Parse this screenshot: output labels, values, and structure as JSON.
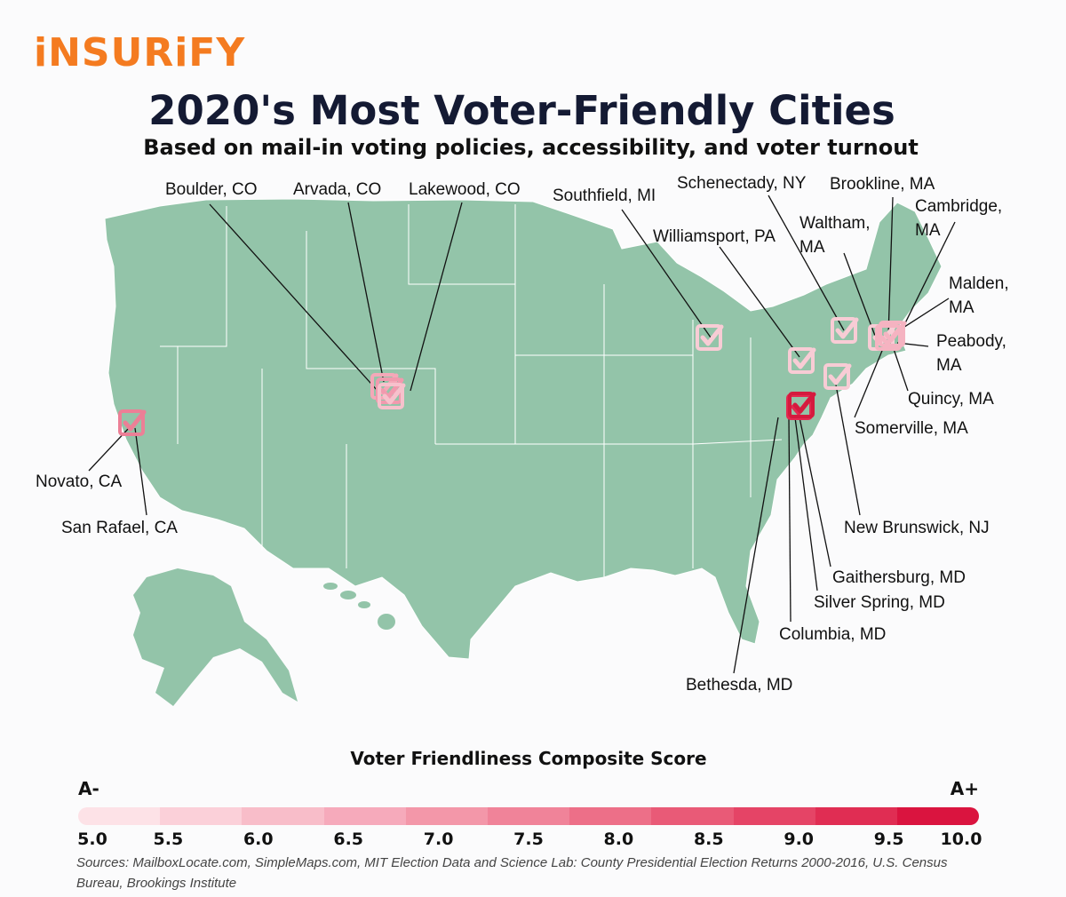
{
  "brand": {
    "logo_text": "iNSURiFY",
    "brand_color": "#f47b20"
  },
  "title": "2020's Most Voter-Friendly Cities",
  "subtitle": "Based on mail-in voting policies, accessibility, and voter turnout",
  "map": {
    "land_color": "#93c4a9",
    "marker_icon": "checkbox-check-icon",
    "cities": [
      {
        "label": "Boulder, CO",
        "score_color": "#f4a8b8"
      },
      {
        "label": "Arvada, CO",
        "score_color": "#f19aae"
      },
      {
        "label": "Lakewood, CO",
        "score_color": "#f7c1cc"
      },
      {
        "label": "Southfield, MI",
        "score_color": "#f8ccd5"
      },
      {
        "label": "Schenectady, NY",
        "score_color": "#f8ccd5"
      },
      {
        "label": "Brookline, MA",
        "score_color": "#f5b3c1"
      },
      {
        "label": "Cambridge, MA",
        "score_color": "#f5b3c1"
      },
      {
        "label": "Waltham, MA",
        "score_color": "#f8ccd5"
      },
      {
        "label": "Williamsport, PA",
        "score_color": "#f8ccd5"
      },
      {
        "label": "Malden, MA",
        "score_color": "#f8ccd5"
      },
      {
        "label": "Peabody, MA",
        "score_color": "#f8ccd5"
      },
      {
        "label": "Quincy, MA",
        "score_color": "#f8ccd5"
      },
      {
        "label": "Somerville, MA",
        "score_color": "#f8ccd5"
      },
      {
        "label": "Novato, CA",
        "score_color": "#ec7f96"
      },
      {
        "label": "San Rafael, CA",
        "score_color": "#ec7f96"
      },
      {
        "label": "New Brunswick, NJ",
        "score_color": "#f8ccd5"
      },
      {
        "label": "Gaithersburg, MD",
        "score_color": "#e32950"
      },
      {
        "label": "Silver Spring, MD",
        "score_color": "#e32950"
      },
      {
        "label": "Columbia, MD",
        "score_color": "#d51a3e"
      },
      {
        "label": "Bethesda, MD",
        "score_color": "#d51a3e"
      }
    ]
  },
  "legend": {
    "title": "Voter Friendliness Composite Score",
    "low_label": "A-",
    "high_label": "A+",
    "ticks": [
      "5.0",
      "5.5",
      "6.0",
      "6.5",
      "7.0",
      "7.5",
      "8.0",
      "8.5",
      "9.0",
      "9.5",
      "10.0"
    ],
    "colors": [
      "#fde2e7",
      "#fbd0d9",
      "#f8bdc9",
      "#f6aabb",
      "#f397a9",
      "#f08399",
      "#ed6f88",
      "#e95a77",
      "#e54466",
      "#e02d53",
      "#da143f"
    ]
  },
  "sources": "Sources: MailboxLocate.com, SimpleMaps.com, MIT Election Data and Science Lab: County Presidential Election Returns 2000-2016, U.S. Census Bureau, Brookings Institute"
}
